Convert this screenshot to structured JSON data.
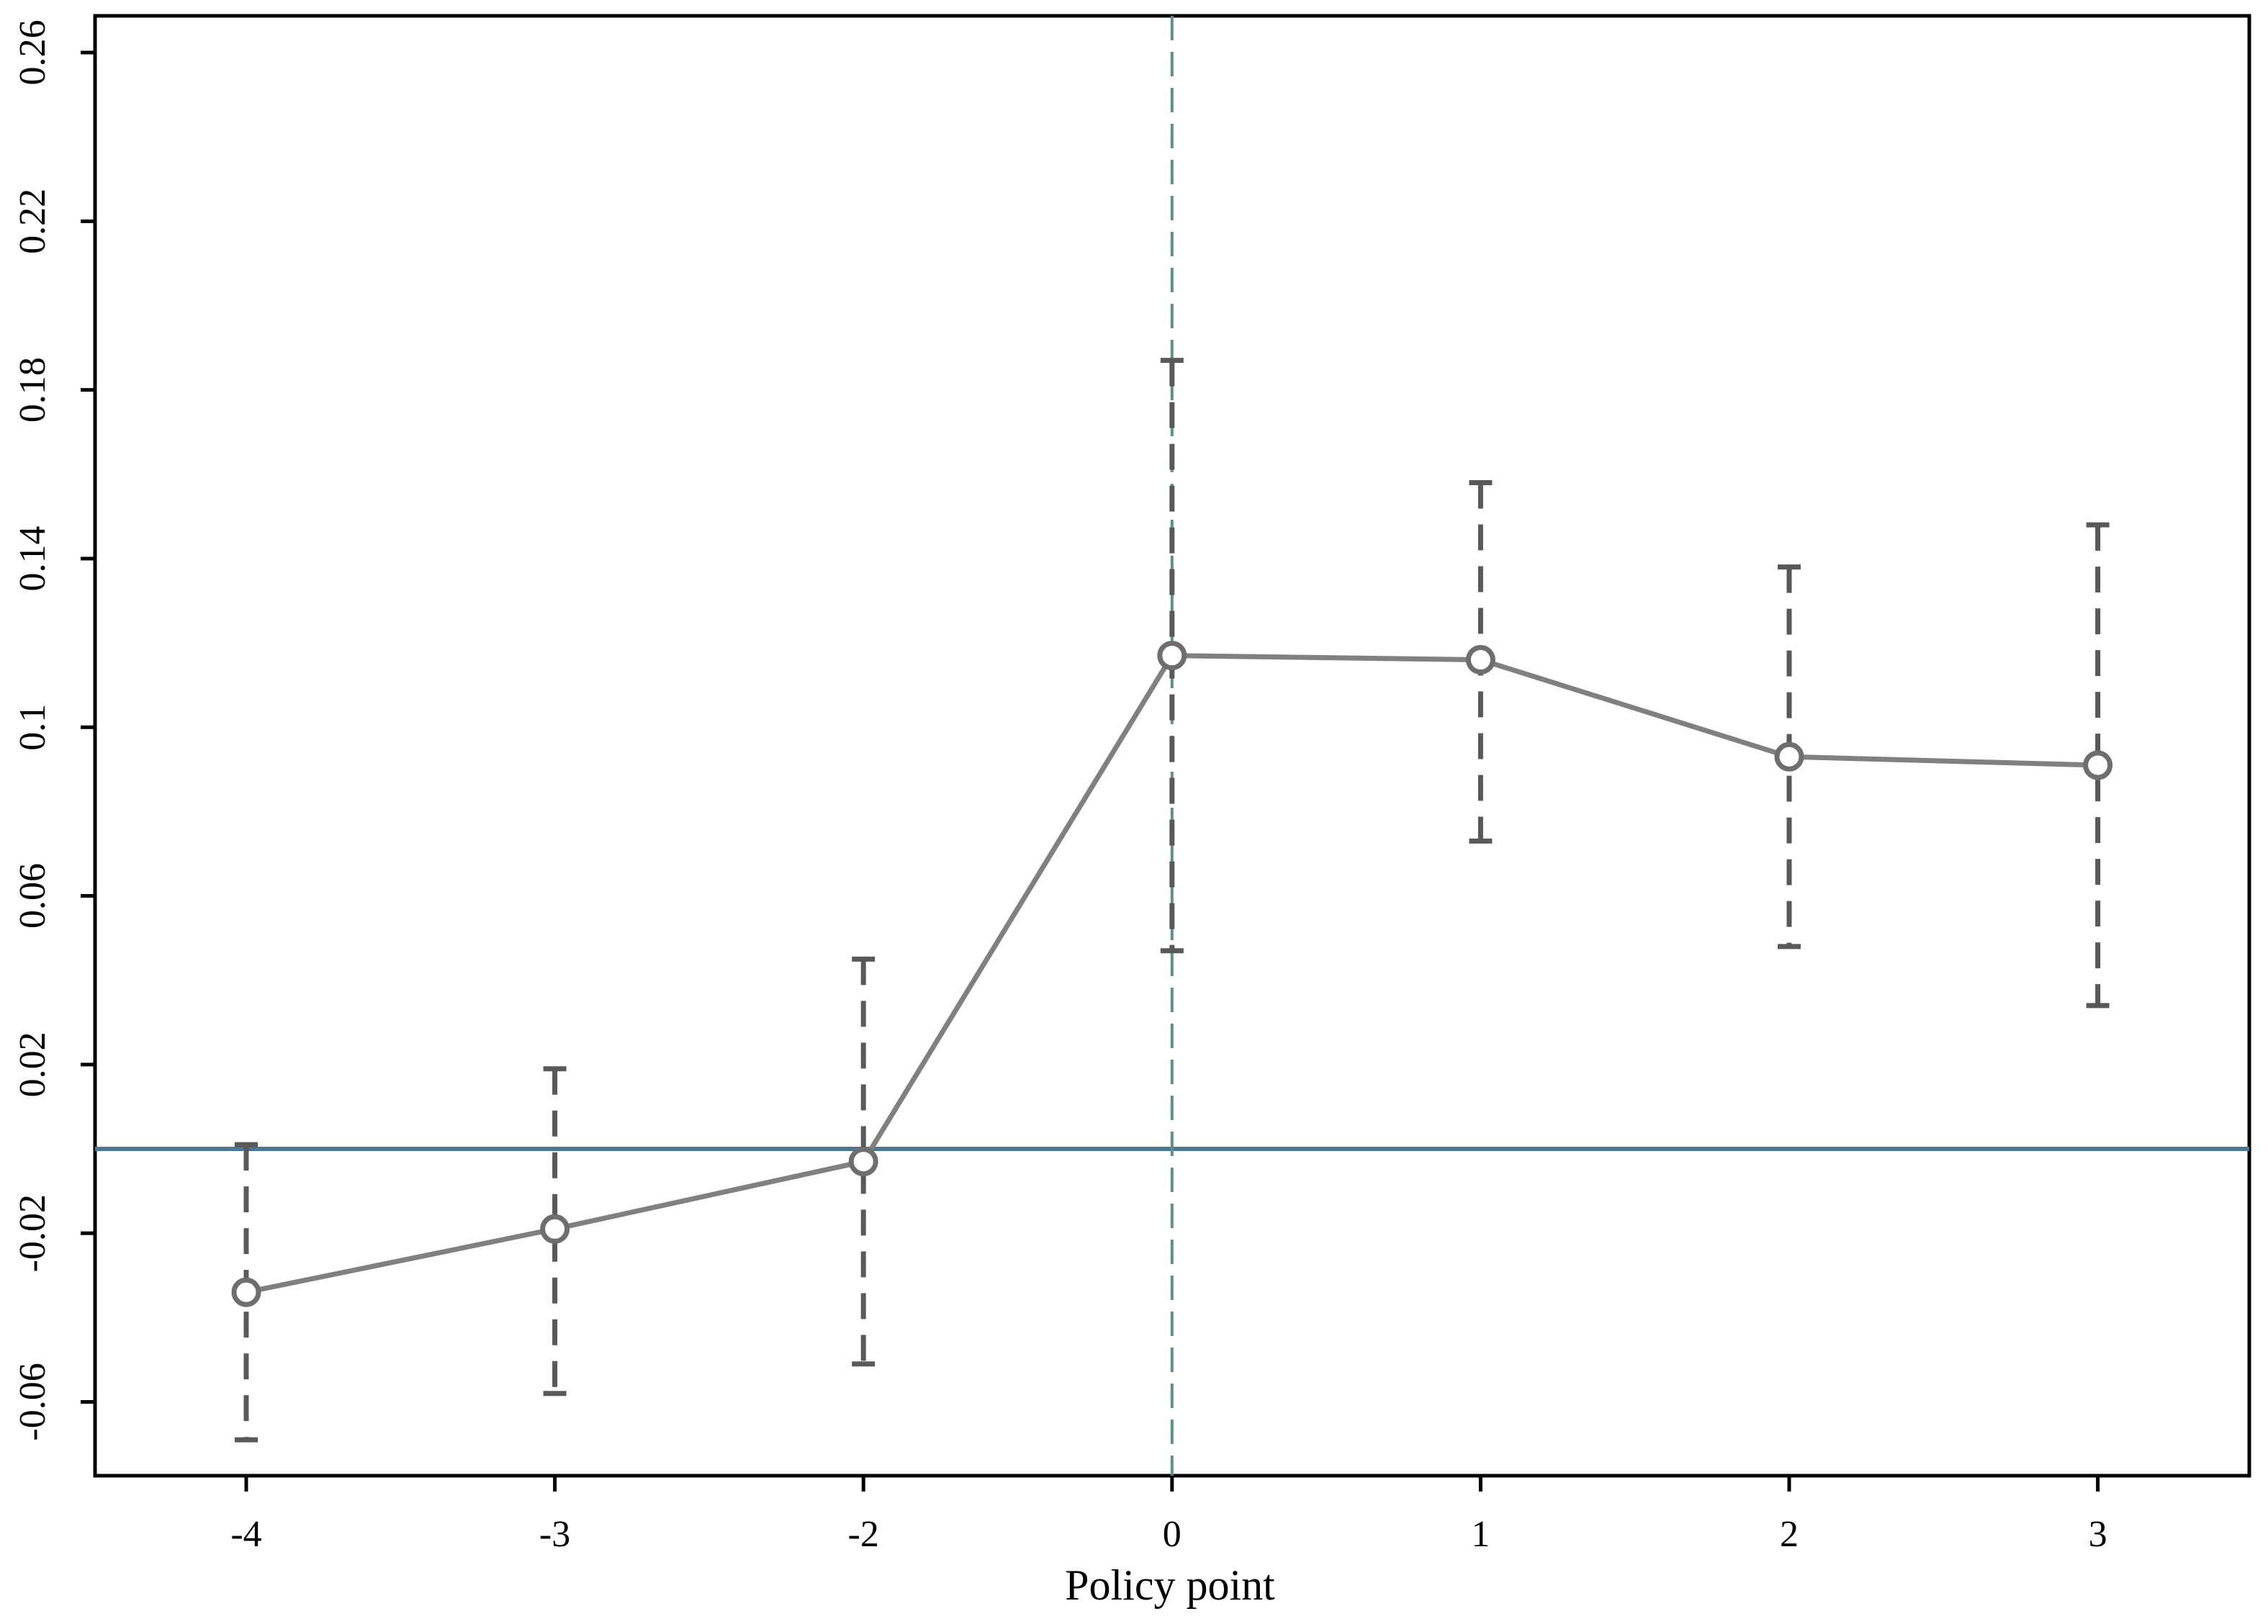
{
  "chart_data": {
    "type": "line",
    "title": "",
    "xlabel": "Policy point",
    "ylabel": "",
    "categories": [
      "-4",
      "-3",
      "-2",
      "0",
      "1",
      "2",
      "3"
    ],
    "y_ticks": [
      "-0.06",
      "-0.02",
      "0.02",
      "0.06",
      "0.1",
      "0.14",
      "0.18",
      "0.22",
      "0.26"
    ],
    "ylim": [
      -0.077,
      0.269
    ],
    "series": [
      {
        "values": [
          -0.034,
          -0.019,
          -0.003,
          0.117,
          0.116,
          0.093,
          0.091
        ],
        "ci_lower": [
          -0.069,
          -0.058,
          -0.051,
          0.047,
          0.073,
          0.048,
          0.034
        ],
        "ci_upper": [
          0.001,
          0.019,
          0.045,
          0.187,
          0.158,
          0.138,
          0.148
        ]
      }
    ],
    "reference_line_y": 0,
    "event_line_category": "0",
    "grid": false,
    "legend": "none",
    "colors": {
      "series_line": "#808080",
      "error_bar": "#595959",
      "reference_line": "#4a7a94",
      "event_line": "#5f8f8a",
      "axis": "#000000"
    }
  }
}
